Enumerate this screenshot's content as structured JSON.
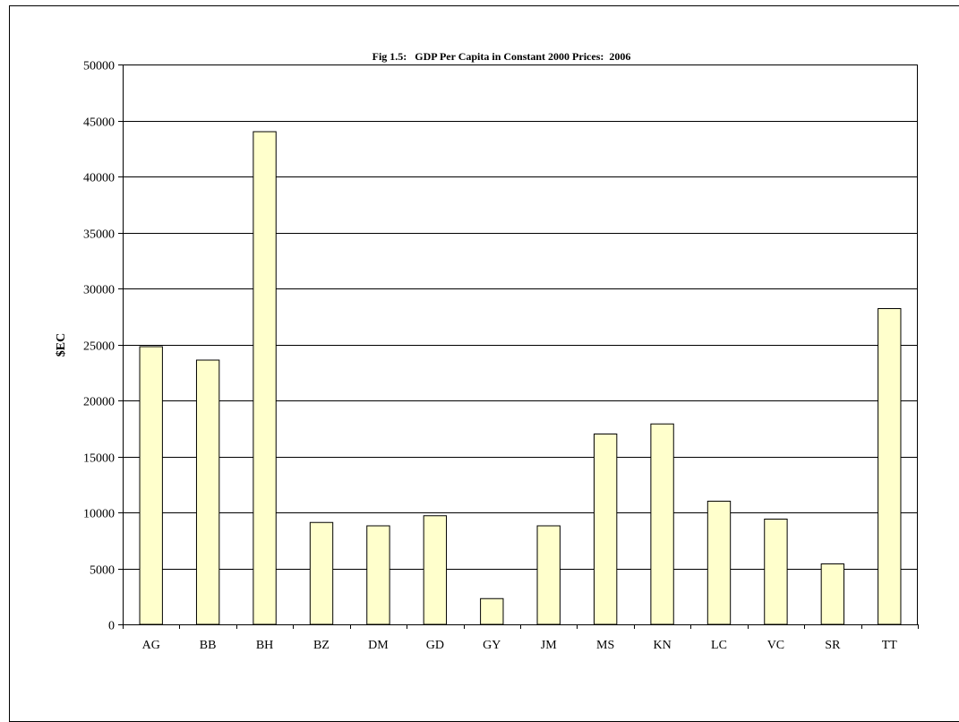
{
  "chart_data": {
    "type": "bar",
    "title": "Fig 1.5:   GDP Per Capita in Constant 2000 Prices:  2006",
    "ylabel": "$EC",
    "xlabel": "",
    "ylim": [
      0,
      50000
    ],
    "yticks": [
      0,
      5000,
      10000,
      15000,
      20000,
      25000,
      30000,
      35000,
      40000,
      45000,
      50000
    ],
    "grid": true,
    "legend": "none",
    "categories": [
      "AG",
      "BB",
      "BH",
      "BZ",
      "DM",
      "GD",
      "GY",
      "JM",
      "MS",
      "KN",
      "LC",
      "VC",
      "SR",
      "TT"
    ],
    "values": [
      24800,
      23600,
      44000,
      9100,
      8800,
      9700,
      2300,
      8800,
      17000,
      17900,
      11000,
      9400,
      5400,
      28200
    ],
    "colors": {
      "bar_fill": "#ffffcc",
      "bar_stroke": "#000000",
      "grid": "#000000"
    }
  }
}
